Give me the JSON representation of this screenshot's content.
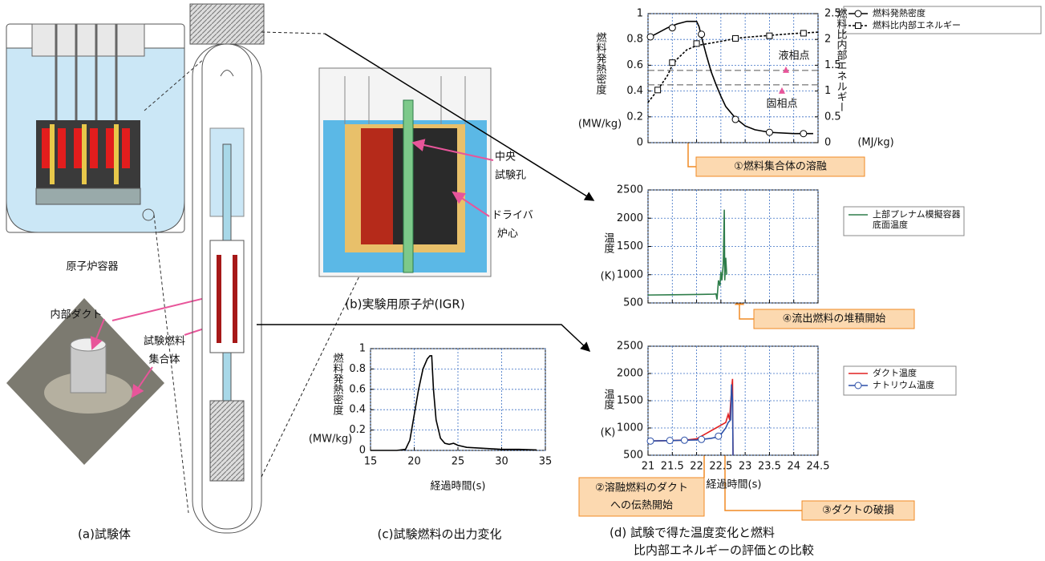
{
  "diagram": {
    "reactor_vessel": "原子炉容器",
    "inner_duct": "内部ダクト",
    "test_fuel": [
      "試験燃料",
      "集合体"
    ],
    "central_hole": [
      "中央",
      "試験孔"
    ],
    "driver_core": [
      "ドライバ",
      "炉心"
    ],
    "igr": "(b)実験用原子炉(IGR)"
  },
  "captions": {
    "a": "(a)試験体",
    "c": "(c)試験燃料の出力変化",
    "d": [
      "(d) 試験で得た温度変化と燃料",
      "比内部エネルギーの評価との比較"
    ]
  },
  "annotations": {
    "melting": "①燃料集合体の溶融",
    "deposit": "④流出燃料の堆積開始",
    "heat": [
      "②溶融燃料のダクト",
      "への伝熱開始"
    ],
    "breach": "③ダクトの破損"
  },
  "chart_data": [
    {
      "type": "line",
      "x_label": "経過時間(s)",
      "y_label": "燃料発熱密度",
      "y_unit": "(MW/kg)",
      "xlim": [
        15,
        35
      ],
      "xticks": [
        15,
        20,
        25,
        30,
        35
      ],
      "ylim": [
        0,
        1
      ],
      "yticks": [
        0,
        0.2,
        0.4,
        0.6,
        0.8,
        1
      ],
      "grid": true,
      "series": [
        {
          "color": "#000000",
          "x": [
            15,
            18,
            19,
            19.5,
            20,
            20.5,
            21,
            21.5,
            21.8,
            22,
            22.2,
            22.5,
            23,
            23.5,
            24,
            24.5,
            25,
            26,
            28,
            30,
            32,
            34
          ],
          "values": [
            0,
            0,
            0.01,
            0.1,
            0.35,
            0.6,
            0.8,
            0.9,
            0.93,
            0.93,
            0.6,
            0.3,
            0.12,
            0.07,
            0.06,
            0.07,
            0.05,
            0.03,
            0.02,
            0.01,
            0.01,
            0.005
          ]
        }
      ]
    },
    {
      "type": "line",
      "y_label": "燃料発熱密度",
      "y_unit": "(MW/kg)",
      "y2_label": "燃料比内部エネルギー",
      "y2_unit": "(MJ/kg)",
      "xlim": [
        21,
        24.5
      ],
      "xticks": [
        21,
        21.5,
        22,
        22.5,
        23,
        23.5,
        24,
        24.5
      ],
      "xtick_labels": false,
      "ylim": [
        0,
        1
      ],
      "yticks": [
        0,
        0.2,
        0.4,
        0.6,
        0.8,
        1
      ],
      "y2lim": [
        0,
        2.5
      ],
      "y2ticks": [
        0,
        0.5,
        1,
        1.5,
        2,
        2.5
      ],
      "grid": true,
      "reference_lines": [
        {
          "label": "液相点",
          "value": 1.4,
          "axis": "y2"
        },
        {
          "label": "固相点",
          "value": 1.12,
          "axis": "y2"
        }
      ],
      "reference_label_color": "#e0187a",
      "series": [
        {
          "name": "燃料発熱密度",
          "color": "#000000",
          "marker": "circle",
          "x": [
            21,
            21.2,
            21.4,
            21.6,
            21.8,
            22,
            22.05,
            22.1,
            22.2,
            22.3,
            22.4,
            22.5,
            22.6,
            22.8,
            23,
            23.2,
            23.5,
            24,
            24.4
          ],
          "values": [
            0.81,
            0.85,
            0.89,
            0.92,
            0.94,
            0.94,
            0.9,
            0.82,
            0.68,
            0.55,
            0.45,
            0.36,
            0.28,
            0.19,
            0.13,
            0.1,
            0.08,
            0.07,
            0.07
          ],
          "markers": {
            "x": [
              21.05,
              21.5,
              22.1,
              22.8,
              23.5,
              24.2
            ],
            "values": [
              0.82,
              0.89,
              0.84,
              0.18,
              0.08,
              0.07
            ]
          }
        },
        {
          "name": "燃料比内部エネルギー",
          "color": "#000000",
          "dash": true,
          "marker": "square",
          "axis": "y2",
          "x": [
            21,
            21.2,
            21.4,
            21.5,
            21.6,
            21.8,
            22,
            22.3,
            22.6,
            22.8,
            23,
            23.4,
            23.8,
            24.1,
            24.5
          ],
          "values": [
            0.78,
            1.02,
            1.3,
            1.5,
            1.62,
            1.8,
            1.88,
            1.93,
            1.98,
            2.02,
            2.04,
            2.07,
            2.1,
            2.12,
            2.14
          ],
          "markers": {
            "x": [
              21.2,
              21.5,
              22,
              22.8,
              23.5,
              24.2
            ],
            "values": [
              1.02,
              1.55,
              1.92,
              2.02,
              2.07,
              2.12
            ]
          }
        }
      ]
    },
    {
      "type": "line",
      "y_label": "温度",
      "y_unit": "(K)",
      "xlim": [
        21,
        24.5
      ],
      "xticks": [
        21,
        21.5,
        22,
        22.5,
        23,
        23.5,
        24,
        24.5
      ],
      "xtick_labels": false,
      "ylim": [
        500,
        2500
      ],
      "yticks": [
        500,
        1000,
        1500,
        2000,
        2500
      ],
      "grid": true,
      "series": [
        {
          "name": "上部プレナム模擬容器底面温度",
          "color": "#2e7d4a",
          "x": [
            21,
            21.5,
            22,
            22.35,
            22.4,
            22.42,
            22.45,
            22.48,
            22.5,
            22.52,
            22.55,
            22.57,
            22.58,
            22.6,
            22.62
          ],
          "values": [
            640,
            645,
            650,
            655,
            660,
            560,
            900,
            800,
            1050,
            900,
            1200,
            2150,
            900,
            1300,
            1000
          ]
        }
      ]
    },
    {
      "type": "line",
      "x_label": "経過時間(s)",
      "y_label": "温度",
      "y_unit": "(K)",
      "xlim": [
        21,
        24.5
      ],
      "xticks": [
        21,
        21.5,
        22,
        22.5,
        23,
        23.5,
        24,
        24.5
      ],
      "ylim": [
        500,
        2500
      ],
      "yticks": [
        500,
        1000,
        1500,
        2000,
        2500
      ],
      "grid": true,
      "series": [
        {
          "name": "ダクト温度",
          "color": "#e02020",
          "x": [
            21,
            21.5,
            21.8,
            22,
            22.2,
            22.4,
            22.5,
            22.6,
            22.65,
            22.68,
            22.7,
            22.72,
            22.74,
            22.75
          ],
          "values": [
            760,
            770,
            780,
            800,
            900,
            1000,
            1050,
            1100,
            1250,
            1150,
            1450,
            1700,
            1900,
            500
          ]
        },
        {
          "name": "ナトリウム温度",
          "color": "#2b4fa8",
          "marker": "circle",
          "x": [
            21,
            21.5,
            22,
            22.3,
            22.4,
            22.5,
            22.6,
            22.65,
            22.7,
            22.72,
            22.74,
            22.75
          ],
          "values": [
            760,
            770,
            780,
            810,
            830,
            880,
            1000,
            1100,
            1150,
            1800,
            1500,
            500
          ],
          "markers": {
            "x": [
              21.05,
              21.45,
              21.75,
              22.1,
              22.45
            ],
            "values": [
              760,
              770,
              775,
              790,
              850
            ]
          }
        }
      ]
    }
  ]
}
